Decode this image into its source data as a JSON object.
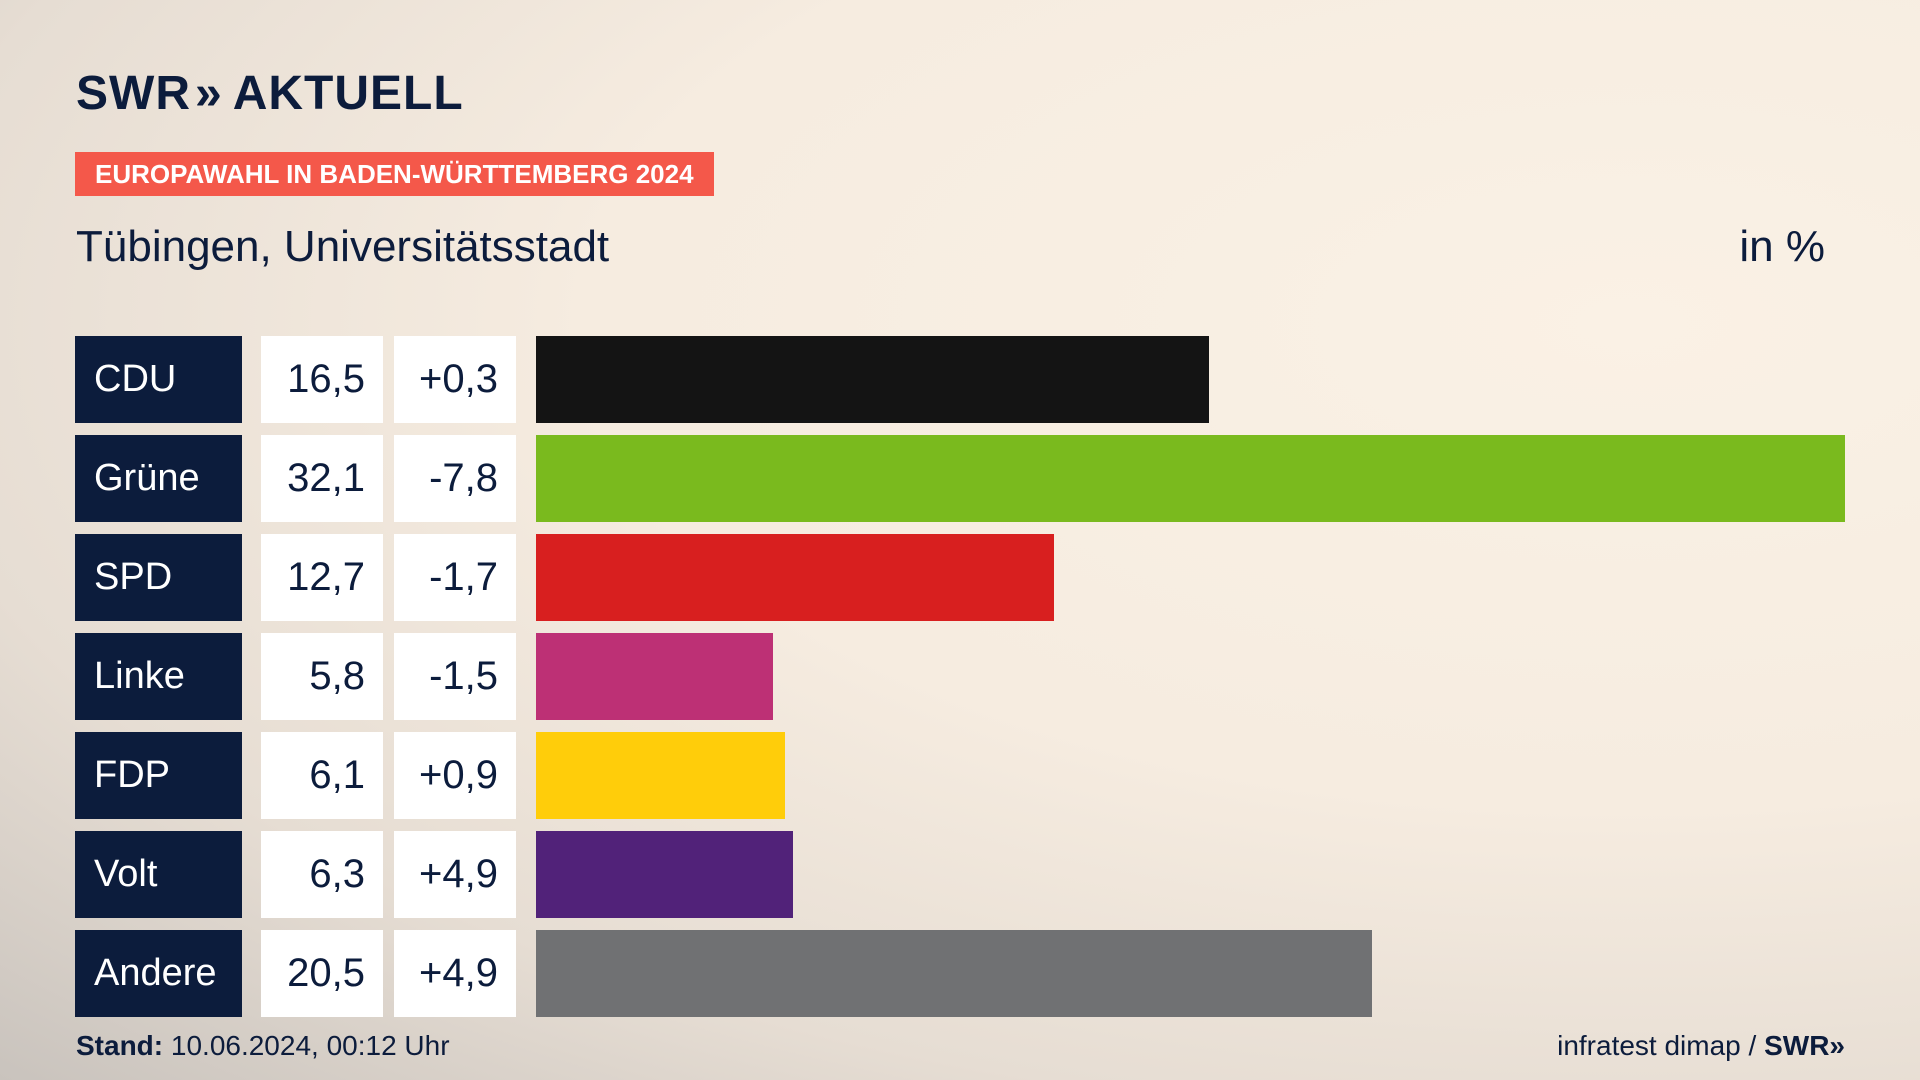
{
  "header": {
    "brand_a": "SWR",
    "brand_chevron": "»",
    "brand_b": "AKTUELL",
    "election_tag": "EUROPAWAHL IN BADEN-WÜRTTEMBERG 2024",
    "title": "Tübingen, Universitätsstadt",
    "unit": "in %"
  },
  "chart_data": {
    "type": "bar",
    "orientation": "horizontal",
    "title": "Tübingen, Universitätsstadt",
    "unit": "in %",
    "categories": [
      "CDU",
      "Grüne",
      "SPD",
      "Linke",
      "FDP",
      "Volt",
      "Andere"
    ],
    "values": [
      16.5,
      32.1,
      12.7,
      5.8,
      6.1,
      6.3,
      20.5
    ],
    "value_labels": [
      "16,5",
      "32,1",
      "12,7",
      "5,8",
      "6,1",
      "6,3",
      "20,5"
    ],
    "change_labels": [
      "+0,3",
      "-7,8",
      "-1,7",
      "-1,5",
      "+0,9",
      "+4,9",
      "+4,9"
    ],
    "changes": [
      0.3,
      -7.8,
      -1.7,
      -1.5,
      0.9,
      4.9,
      4.9
    ],
    "colors": [
      "#141414",
      "#7aba1e",
      "#d81f1f",
      "#bd3075",
      "#ffcd0a",
      "#512279",
      "#707173"
    ],
    "xlim": [
      0,
      32.1
    ],
    "grid": false,
    "legend": "none"
  },
  "footer": {
    "stand_label": "Stand:",
    "stand_value": "10.06.2024, 00:12 Uhr",
    "source": "infratest dimap /",
    "source_brand": "SWR»"
  }
}
